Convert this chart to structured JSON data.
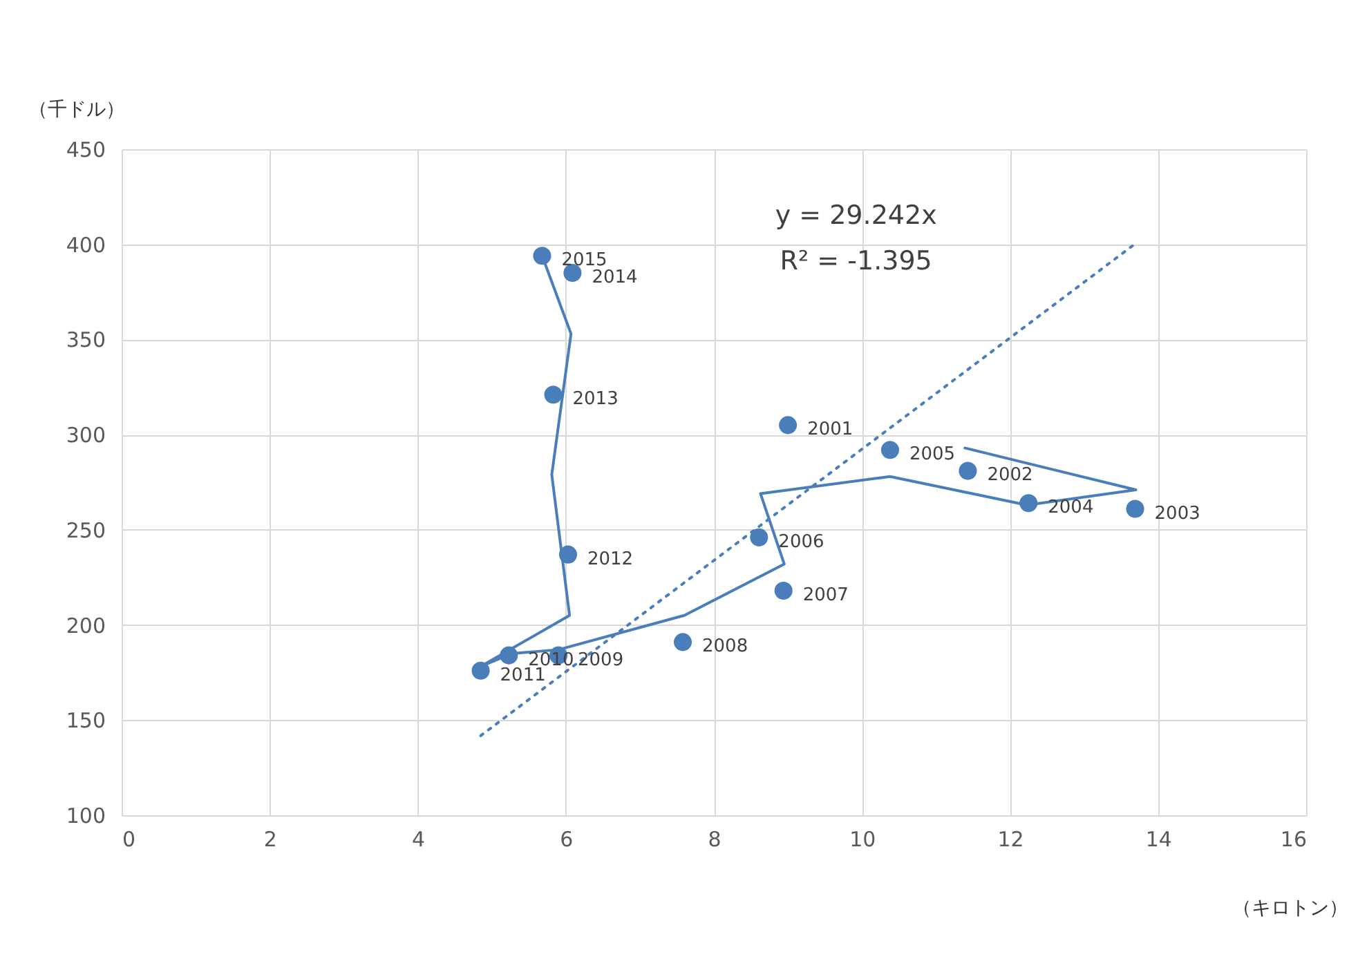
{
  "chart_data": {
    "type": "scatter",
    "xlabel": "（キロトン）",
    "ylabel": "（千ドル）",
    "xlim": [
      0,
      16
    ],
    "xticks": [
      0,
      2,
      4,
      6,
      8,
      10,
      12,
      14,
      16
    ],
    "ylim": [
      100,
      450
    ],
    "yticks": [
      100,
      150,
      200,
      250,
      300,
      350,
      400,
      450
    ],
    "grid": true,
    "series": [
      {
        "marker": "circle",
        "color": "#4a7ebb",
        "x": [
          9.0,
          11.43,
          13.69,
          12.25,
          10.38,
          8.61,
          8.94,
          7.58,
          5.9,
          5.23,
          4.85,
          6.03,
          5.83,
          6.09,
          5.68
        ],
        "values": [
          305,
          281,
          261,
          264,
          292,
          246,
          218,
          191,
          184,
          184,
          176,
          237,
          321,
          385,
          394
        ]
      },
      {
        "type": "line",
        "line_style": "solid",
        "color": "#4a7ebb",
        "x": [
          11.39,
          13.7,
          12.23,
          10.38,
          8.63,
          8.95,
          7.6,
          5.9,
          5.27,
          4.84,
          6.05,
          5.81,
          6.07,
          5.68
        ],
        "values": [
          293,
          271,
          263,
          278,
          269,
          232,
          205,
          187,
          185,
          178,
          205,
          279,
          353,
          394
        ]
      },
      {
        "type": "line",
        "line_style": "dotted",
        "color": "#4a7ebb",
        "x": [
          4.85,
          13.69
        ],
        "values": [
          141.8,
          400.3
        ]
      }
    ],
    "annotations": [
      "y = 29.242x",
      "R² = -1.395",
      {
        "text": "2001",
        "x": 9.0,
        "y": 305
      },
      {
        "text": "2002",
        "x": 11.43,
        "y": 281
      },
      {
        "text": "2003",
        "x": 13.69,
        "y": 261
      },
      {
        "text": "2004",
        "x": 12.25,
        "y": 264
      },
      {
        "text": "2005",
        "x": 10.38,
        "y": 292
      },
      {
        "text": "2006",
        "x": 8.61,
        "y": 246
      },
      {
        "text": "2007",
        "x": 8.94,
        "y": 218
      },
      {
        "text": "2008",
        "x": 7.58,
        "y": 191
      },
      {
        "text": "2009",
        "x": 5.9,
        "y": 184
      },
      {
        "text": "2010",
        "x": 5.23,
        "y": 184
      },
      {
        "text": "2011",
        "x": 4.85,
        "y": 176
      },
      {
        "text": "2012",
        "x": 6.03,
        "y": 237
      },
      {
        "text": "2013",
        "x": 5.83,
        "y": 321
      },
      {
        "text": "2014",
        "x": 6.09,
        "y": 385
      },
      {
        "text": "2015",
        "x": 5.68,
        "y": 394
      }
    ]
  }
}
